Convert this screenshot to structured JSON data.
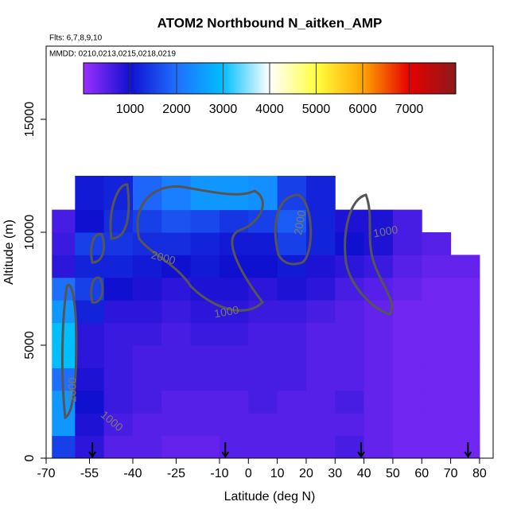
{
  "chart_data": {
    "type": "heatmap",
    "title": "ATOM2 Northbound N_aitken_AMP",
    "subtitle": "Flts: 6,7,8,9,10",
    "annotation": "MMDD: 0210,0213,0215,0218,0219",
    "x_label": "Latitude (deg N)",
    "y_label": "Altitude (m)",
    "xlim": [
      -70,
      84.7
    ],
    "ylim": [
      0,
      18240
    ],
    "xticks": [
      -70,
      -55,
      -40,
      -25,
      -10,
      0,
      10,
      20,
      30,
      40,
      50,
      60,
      70,
      80
    ],
    "yticks": [
      0,
      5000,
      10000,
      15000
    ],
    "zlim": [
      0,
      8000
    ],
    "colorbar_ticks": [
      1000,
      2000,
      3000,
      4000,
      5000,
      6000,
      7000
    ],
    "colormap": [
      "#9b30ff",
      "#1010d0",
      "#1f6fff",
      "#00bfff",
      "#ffffff",
      "#ffff40",
      "#ffa500",
      "#e60000",
      "#8b1a1a"
    ],
    "contour_levels": [
      1000,
      2000
    ],
    "flight_markers": [
      -54,
      -8,
      39,
      76
    ],
    "x_edges": [
      -68,
      -60,
      -50,
      -40,
      -30,
      -20,
      -10,
      0,
      10,
      20,
      30,
      40,
      50,
      60,
      70,
      80
    ],
    "y_edges": [
      0,
      1000,
      2000,
      3000,
      4000,
      5000,
      6000,
      7000,
      8000,
      9000,
      10000,
      11000,
      12500
    ],
    "z": [
      [
        1500,
        800,
        500,
        500,
        400,
        400,
        500,
        500,
        500,
        500,
        600,
        400,
        300,
        300,
        300
      ],
      [
        2500,
        900,
        600,
        500,
        500,
        500,
        500,
        500,
        500,
        500,
        500,
        400,
        300,
        300,
        300
      ],
      [
        2500,
        1000,
        700,
        600,
        500,
        500,
        500,
        600,
        500,
        500,
        600,
        400,
        300,
        300,
        300
      ],
      [
        2000,
        900,
        700,
        600,
        600,
        600,
        600,
        600,
        600,
        500,
        500,
        400,
        300,
        300,
        300
      ],
      [
        3000,
        800,
        700,
        600,
        600,
        600,
        600,
        600,
        600,
        500,
        500,
        400,
        300,
        300,
        300
      ],
      [
        3000,
        800,
        700,
        700,
        600,
        700,
        700,
        600,
        600,
        500,
        500,
        400,
        300,
        300,
        300
      ],
      [
        2500,
        1200,
        800,
        800,
        700,
        800,
        800,
        700,
        700,
        600,
        500,
        400,
        300,
        300,
        300
      ],
      [
        2000,
        1500,
        1000,
        900,
        800,
        900,
        900,
        800,
        900,
        800,
        600,
        500,
        400,
        300,
        300
      ],
      [
        800,
        1200,
        1200,
        1100,
        1000,
        1100,
        1000,
        1000,
        1100,
        900,
        800,
        700,
        500,
        400,
        400
      ],
      [
        700,
        1500,
        1400,
        1300,
        1300,
        1200,
        1100,
        1100,
        1500,
        1200,
        1000,
        900,
        600,
        500,
        null
      ],
      [
        600,
        1000,
        1300,
        1500,
        1700,
        1600,
        1400,
        1500,
        1800,
        1200,
        900,
        900,
        600,
        null,
        null
      ],
      [
        null,
        1100,
        1200,
        1900,
        2200,
        2500,
        2500,
        2400,
        1500,
        1200,
        null,
        null,
        null,
        null,
        null
      ]
    ]
  }
}
